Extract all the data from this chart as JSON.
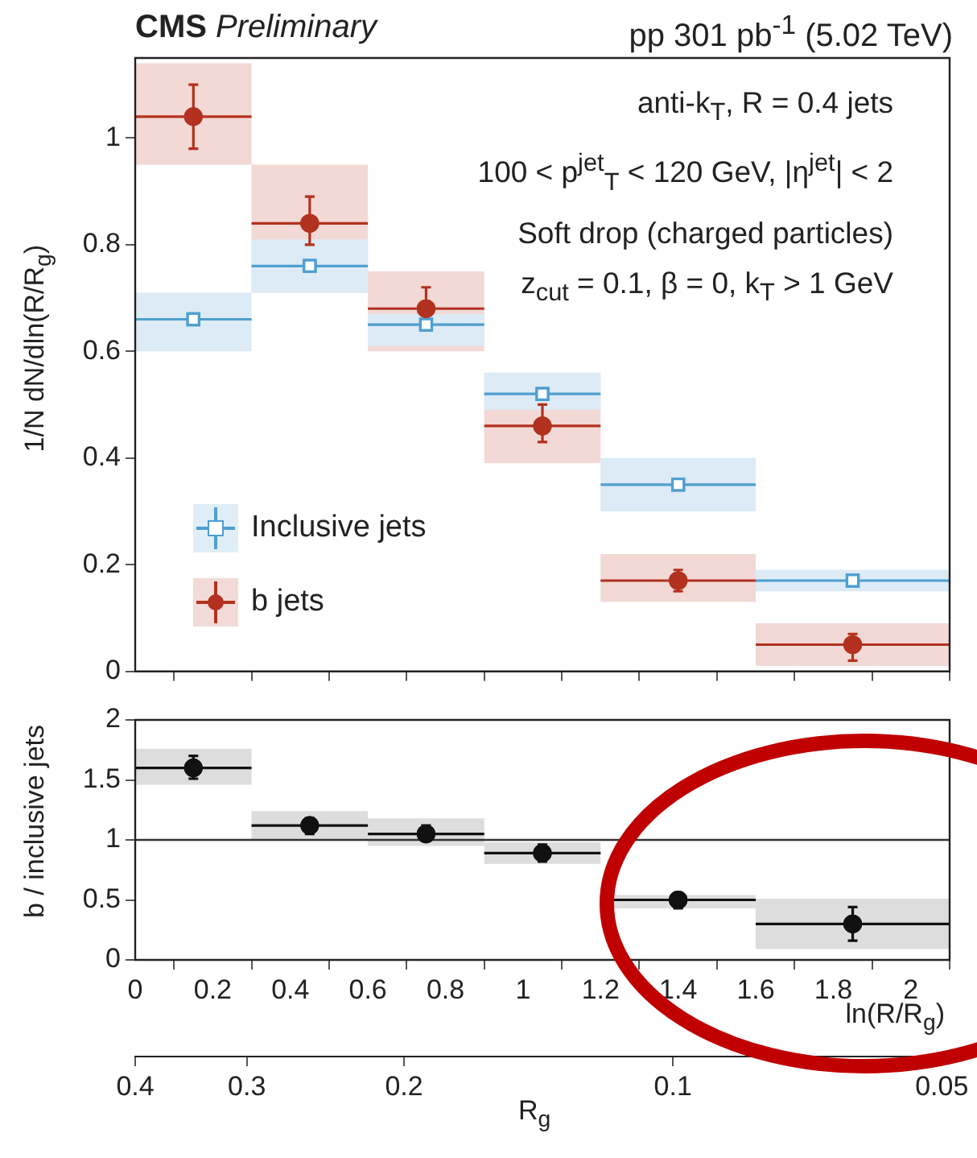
{
  "chart_data": [
    {
      "type": "scatter",
      "title": "CMS Preliminary",
      "subtitle": "pp 301 pb$^{-1}$ (5.02 TeV)",
      "ylabel": "1/N dN/dln(R/R$_{g}$)",
      "annotations": [
        "anti-k$_{T}$, R = 0.4 jets",
        "100 < p$^{jet}$$_{T}$ < 120 GeV, |η$^{jet}$| < 2",
        "Soft drop (charged particles)",
        "z$_{cut}$ = 0.1, β = 0, k$_{T}$ > 1 GeV"
      ],
      "x": [
        0.15,
        0.45,
        0.75,
        1.05,
        1.4,
        1.85
      ],
      "xlim": [
        0,
        2.1
      ],
      "xticks": [
        0,
        0.2,
        0.4,
        0.6,
        0.8,
        1,
        1.2,
        1.4,
        1.6,
        1.8,
        2
      ],
      "ylim": [
        0,
        1.15
      ],
      "yticks": [
        0,
        0.2,
        0.4,
        0.6,
        0.8,
        1
      ],
      "tick_labels": "y",
      "grid": false,
      "legend": "bottom left",
      "series": [
        {
          "name": "Inclusive jets",
          "color": "#4f9fd0",
          "marker": "square",
          "values": [
            0.66,
            0.76,
            0.65,
            0.52,
            0.35,
            0.17
          ],
          "xerrors": [
            0.15,
            0.15,
            0.15,
            0.15,
            0.2,
            0.25
          ]
        },
        {
          "name": "b jets",
          "color": "#b3311f",
          "marker": "circle",
          "values": [
            1.04,
            0.84,
            0.68,
            0.46,
            0.17,
            0.05
          ],
          "xerrors": [
            0.15,
            0.15,
            0.15,
            0.15,
            0.2,
            0.25
          ],
          "errors": [
            [
              0.98,
              1.1
            ],
            [
              0.8,
              0.89
            ],
            [
              0.64,
              0.72
            ],
            [
              0.43,
              0.5
            ],
            [
              0.15,
              0.19
            ],
            [
              0.02,
              0.07
            ]
          ]
        },
        {
          "type": "bar",
          "color": "#dcebf6",
          "base": [
            0.6,
            0.71,
            0.61,
            0.49,
            0.3,
            0.15
          ],
          "values": [
            0.11,
            0.1,
            0.06,
            0.07,
            0.1,
            0.04
          ]
        },
        {
          "type": "bar",
          "color": "#f2d9d5",
          "base": [
            0.95,
            0.71,
            0.6,
            0.39,
            0.13,
            0.01
          ],
          "values": [
            0.19,
            0.24,
            0.15,
            0.16,
            0.09,
            0.08
          ]
        }
      ]
    },
    {
      "type": "scatter",
      "ylabel": "b / inclusive jets",
      "xlabel": "ln(R/R$_{g}$)",
      "x2label": "R$_{g}$",
      "x": [
        0.15,
        0.45,
        0.75,
        1.05,
        1.4,
        1.85
      ],
      "xlim": [
        0,
        2.1
      ],
      "xticks": [
        0,
        0.2,
        0.4,
        0.6,
        0.8,
        1,
        1.2,
        1.4,
        1.6,
        1.8,
        2
      ],
      "ylim": [
        0,
        2
      ],
      "yticks": [
        0,
        0.5,
        1,
        1.5,
        2
      ],
      "x2lim": [
        0.4,
        0.049
      ],
      "x2ticks": [
        0.4,
        0.3,
        0.2,
        0.1,
        0.05
      ],
      "log": "x2",
      "grid": false,
      "ref_lines": [
        {
          "axis": "y",
          "value": 1,
          "color": "#333333"
        }
      ],
      "series": [
        {
          "color": "#111111",
          "marker": "circle",
          "values": [
            1.6,
            1.12,
            1.05,
            0.89,
            0.5,
            0.3
          ],
          "xerrors": [
            0.15,
            0.15,
            0.15,
            0.15,
            0.2,
            0.25
          ],
          "errors": [
            [
              1.51,
              1.7
            ],
            [
              1.05,
              1.18
            ],
            [
              0.99,
              1.12
            ],
            [
              0.82,
              0.96
            ],
            [
              0.43,
              0.56
            ],
            [
              0.16,
              0.44
            ]
          ]
        },
        {
          "type": "bar",
          "color": "#dddddd",
          "base": [
            1.46,
            1.0,
            0.95,
            0.8,
            0.43,
            0.09
          ],
          "values": [
            0.3,
            0.24,
            0.23,
            0.18,
            0.11,
            0.42
          ]
        }
      ]
    }
  ]
}
